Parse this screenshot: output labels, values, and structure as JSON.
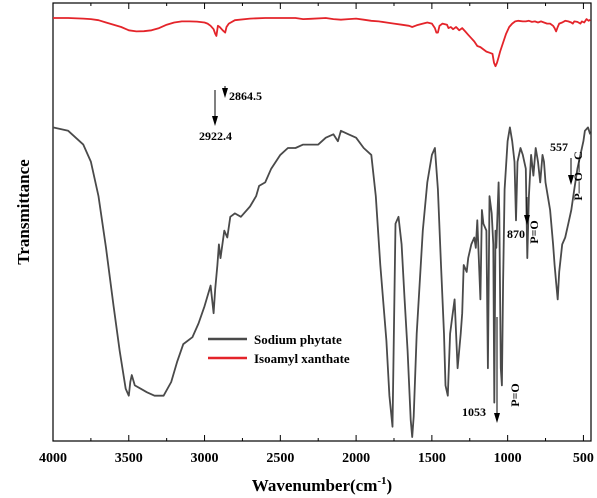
{
  "chart_data": {
    "type": "line",
    "xlabel": "Wavenumber(cm",
    "xlabel_sup": "-1",
    "xlabel_close": ")",
    "ylabel": "Transmittance",
    "xlim": [
      4000,
      450
    ],
    "xticks": [
      4000,
      3500,
      3000,
      2500,
      2000,
      1500,
      1000,
      500
    ],
    "xtick_labels": [
      "4000",
      "3500",
      "3000",
      "2500",
      "2000",
      "1500",
      "1000",
      "500"
    ],
    "y_scale": "arbitrary, no tick labels",
    "legend_position": "lower-center",
    "series": [
      {
        "name": "Sodium phytate",
        "color": "#4a4a4a",
        "points": [
          [
            4000,
            0.9
          ],
          [
            3900,
            0.89
          ],
          [
            3800,
            0.85
          ],
          [
            3750,
            0.8
          ],
          [
            3700,
            0.7
          ],
          [
            3650,
            0.55
          ],
          [
            3600,
            0.38
          ],
          [
            3560,
            0.25
          ],
          [
            3520,
            0.14
          ],
          [
            3500,
            0.12
          ],
          [
            3490,
            0.16
          ],
          [
            3480,
            0.18
          ],
          [
            3460,
            0.15
          ],
          [
            3420,
            0.14
          ],
          [
            3380,
            0.13
          ],
          [
            3330,
            0.12
          ],
          [
            3270,
            0.12
          ],
          [
            3220,
            0.16
          ],
          [
            3180,
            0.22
          ],
          [
            3140,
            0.27
          ],
          [
            3080,
            0.29
          ],
          [
            3040,
            0.33
          ],
          [
            3000,
            0.38
          ],
          [
            2960,
            0.44
          ],
          [
            2940,
            0.36
          ],
          [
            2930,
            0.43
          ],
          [
            2915,
            0.5
          ],
          [
            2905,
            0.56
          ],
          [
            2895,
            0.52
          ],
          [
            2870,
            0.6
          ],
          [
            2850,
            0.58
          ],
          [
            2830,
            0.64
          ],
          [
            2800,
            0.65
          ],
          [
            2760,
            0.64
          ],
          [
            2700,
            0.67
          ],
          [
            2660,
            0.7
          ],
          [
            2640,
            0.73
          ],
          [
            2600,
            0.74
          ],
          [
            2560,
            0.78
          ],
          [
            2500,
            0.82
          ],
          [
            2450,
            0.84
          ],
          [
            2400,
            0.84
          ],
          [
            2350,
            0.85
          ],
          [
            2300,
            0.85
          ],
          [
            2250,
            0.85
          ],
          [
            2200,
            0.87
          ],
          [
            2150,
            0.88
          ],
          [
            2120,
            0.86
          ],
          [
            2100,
            0.89
          ],
          [
            2050,
            0.88
          ],
          [
            2000,
            0.87
          ],
          [
            1950,
            0.84
          ],
          [
            1900,
            0.82
          ],
          [
            1870,
            0.7
          ],
          [
            1840,
            0.5
          ],
          [
            1800,
            0.28
          ],
          [
            1780,
            0.12
          ],
          [
            1760,
            0.03
          ],
          [
            1740,
            0.62
          ],
          [
            1720,
            0.64
          ],
          [
            1700,
            0.56
          ],
          [
            1680,
            0.4
          ],
          [
            1660,
            0.25
          ],
          [
            1640,
            0.05
          ],
          [
            1630,
            0.0
          ],
          [
            1620,
            0.06
          ],
          [
            1600,
            0.3
          ],
          [
            1560,
            0.6
          ],
          [
            1530,
            0.74
          ],
          [
            1500,
            0.82
          ],
          [
            1480,
            0.84
          ],
          [
            1460,
            0.72
          ],
          [
            1440,
            0.5
          ],
          [
            1420,
            0.3
          ],
          [
            1410,
            0.15
          ],
          [
            1395,
            0.12
          ],
          [
            1380,
            0.3
          ],
          [
            1365,
            0.35
          ],
          [
            1350,
            0.4
          ],
          [
            1330,
            0.2
          ],
          [
            1310,
            0.3
          ],
          [
            1300,
            0.36
          ],
          [
            1290,
            0.5
          ],
          [
            1270,
            0.48
          ],
          [
            1260,
            0.52
          ],
          [
            1240,
            0.56
          ],
          [
            1220,
            0.58
          ],
          [
            1210,
            0.55
          ],
          [
            1200,
            0.63
          ],
          [
            1180,
            0.4
          ],
          [
            1170,
            0.66
          ],
          [
            1160,
            0.62
          ],
          [
            1140,
            0.6
          ],
          [
            1130,
            0.2
          ],
          [
            1120,
            0.7
          ],
          [
            1105,
            0.65
          ],
          [
            1095,
            0.56
          ],
          [
            1088,
            0.1
          ],
          [
            1080,
            0.6
          ],
          [
            1075,
            0.55
          ],
          [
            1060,
            0.74
          ],
          [
            1055,
            0.65
          ],
          [
            1045,
            0.2
          ],
          [
            1038,
            0.15
          ],
          [
            1030,
            0.45
          ],
          [
            1020,
            0.72
          ],
          [
            1000,
            0.86
          ],
          [
            985,
            0.9
          ],
          [
            970,
            0.86
          ],
          [
            955,
            0.8
          ],
          [
            945,
            0.63
          ],
          [
            935,
            0.8
          ],
          [
            915,
            0.84
          ],
          [
            900,
            0.82
          ],
          [
            880,
            0.78
          ],
          [
            870,
            0.52
          ],
          [
            860,
            0.7
          ],
          [
            845,
            0.82
          ],
          [
            830,
            0.76
          ],
          [
            815,
            0.84
          ],
          [
            800,
            0.8
          ],
          [
            785,
            0.74
          ],
          [
            770,
            0.82
          ],
          [
            760,
            0.8
          ],
          [
            750,
            0.74
          ],
          [
            735,
            0.7
          ],
          [
            720,
            0.66
          ],
          [
            700,
            0.56
          ],
          [
            690,
            0.5
          ],
          [
            680,
            0.45
          ],
          [
            670,
            0.4
          ],
          [
            660,
            0.48
          ],
          [
            640,
            0.56
          ],
          [
            620,
            0.58
          ],
          [
            600,
            0.62
          ],
          [
            580,
            0.66
          ],
          [
            560,
            0.72
          ],
          [
            540,
            0.78
          ],
          [
            520,
            0.82
          ],
          [
            500,
            0.86
          ],
          [
            490,
            0.89
          ],
          [
            470,
            0.9
          ],
          [
            455,
            0.88
          ]
        ]
      },
      {
        "name": "Isoamyl xanthate",
        "color": "#e4242a",
        "points": [
          [
            4000,
            1.0
          ],
          [
            3900,
            1.0
          ],
          [
            3800,
            0.995
          ],
          [
            3750,
            0.99
          ],
          [
            3700,
            0.98
          ],
          [
            3650,
            0.96
          ],
          [
            3600,
            0.94
          ],
          [
            3550,
            0.92
          ],
          [
            3500,
            0.89
          ],
          [
            3450,
            0.88
          ],
          [
            3400,
            0.882
          ],
          [
            3350,
            0.89
          ],
          [
            3300,
            0.91
          ],
          [
            3250,
            0.94
          ],
          [
            3200,
            0.96
          ],
          [
            3150,
            0.97
          ],
          [
            3100,
            0.97
          ],
          [
            3050,
            0.968
          ],
          [
            3000,
            0.96
          ],
          [
            2980,
            0.95
          ],
          [
            2960,
            0.93
          ],
          [
            2940,
            0.9
          ],
          [
            2930,
            0.86
          ],
          [
            2922,
            0.84
          ],
          [
            2912,
            0.93
          ],
          [
            2900,
            0.92
          ],
          [
            2880,
            0.89
          ],
          [
            2864,
            0.87
          ],
          [
            2855,
            0.92
          ],
          [
            2840,
            0.95
          ],
          [
            2800,
            0.98
          ],
          [
            2700,
            0.995
          ],
          [
            2600,
            1.0
          ],
          [
            2500,
            1.0
          ],
          [
            2400,
            1.0
          ],
          [
            2350,
            0.99
          ],
          [
            2300,
            0.993
          ],
          [
            2200,
            1.0
          ],
          [
            2150,
            0.99
          ],
          [
            2100,
            0.985
          ],
          [
            2050,
            0.99
          ],
          [
            2000,
            0.995
          ],
          [
            1950,
            0.985
          ],
          [
            1900,
            0.975
          ],
          [
            1850,
            0.97
          ],
          [
            1800,
            0.96
          ],
          [
            1750,
            0.95
          ],
          [
            1700,
            0.94
          ],
          [
            1650,
            0.93
          ],
          [
            1630,
            0.92
          ],
          [
            1600,
            0.935
          ],
          [
            1560,
            0.95
          ],
          [
            1530,
            0.96
          ],
          [
            1500,
            0.95
          ],
          [
            1480,
            0.91
          ],
          [
            1470,
            0.87
          ],
          [
            1460,
            0.87
          ],
          [
            1450,
            0.93
          ],
          [
            1430,
            0.95
          ],
          [
            1400,
            0.94
          ],
          [
            1390,
            0.91
          ],
          [
            1375,
            0.92
          ],
          [
            1360,
            0.9
          ],
          [
            1340,
            0.92
          ],
          [
            1320,
            0.89
          ],
          [
            1300,
            0.91
          ],
          [
            1280,
            0.88
          ],
          [
            1260,
            0.85
          ],
          [
            1240,
            0.82
          ],
          [
            1220,
            0.79
          ],
          [
            1200,
            0.75
          ],
          [
            1180,
            0.74
          ],
          [
            1160,
            0.72
          ],
          [
            1140,
            0.7
          ],
          [
            1120,
            0.69
          ],
          [
            1100,
            0.68
          ],
          [
            1090,
            0.6
          ],
          [
            1080,
            0.57
          ],
          [
            1070,
            0.6
          ],
          [
            1060,
            0.65
          ],
          [
            1050,
            0.7
          ],
          [
            1030,
            0.78
          ],
          [
            1010,
            0.86
          ],
          [
            990,
            0.92
          ],
          [
            970,
            0.95
          ],
          [
            950,
            0.97
          ],
          [
            930,
            0.975
          ],
          [
            900,
            0.97
          ],
          [
            880,
            0.97
          ],
          [
            860,
            0.975
          ],
          [
            840,
            0.965
          ],
          [
            820,
            0.97
          ],
          [
            800,
            0.96
          ],
          [
            780,
            0.97
          ],
          [
            760,
            0.96
          ],
          [
            740,
            0.95
          ],
          [
            720,
            0.95
          ],
          [
            700,
            0.93
          ],
          [
            690,
            0.91
          ],
          [
            680,
            0.88
          ],
          [
            670,
            0.92
          ],
          [
            660,
            0.95
          ],
          [
            640,
            0.96
          ],
          [
            620,
            0.975
          ],
          [
            600,
            0.97
          ],
          [
            580,
            0.96
          ],
          [
            570,
            0.95
          ],
          [
            560,
            0.97
          ],
          [
            540,
            0.965
          ],
          [
            520,
            0.95
          ],
          [
            510,
            0.97
          ],
          [
            495,
            0.96
          ],
          [
            480,
            0.99
          ],
          [
            465,
            0.975
          ],
          [
            455,
            0.985
          ]
        ]
      }
    ],
    "annotations": [
      {
        "text": "2864.5",
        "x": 2864.5
      },
      {
        "text": "2922.4",
        "x": 2922.4
      },
      {
        "text": "1053",
        "x": 1053
      },
      {
        "text": "P=O",
        "x": 1053
      },
      {
        "text": "870",
        "x": 870
      },
      {
        "text": "P=O",
        "x": 870
      },
      {
        "text": "557",
        "x": 557
      },
      {
        "text": "P—O—C",
        "x": 557
      }
    ]
  }
}
